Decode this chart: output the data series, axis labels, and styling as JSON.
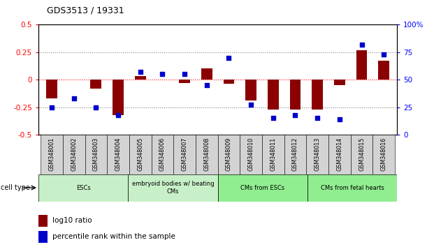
{
  "title": "GDS3513 / 19331",
  "samples": [
    "GSM348001",
    "GSM348002",
    "GSM348003",
    "GSM348004",
    "GSM348005",
    "GSM348006",
    "GSM348007",
    "GSM348008",
    "GSM348009",
    "GSM348010",
    "GSM348011",
    "GSM348012",
    "GSM348013",
    "GSM348014",
    "GSM348015",
    "GSM348016"
  ],
  "log10_ratio": [
    -0.17,
    0.0,
    -0.08,
    -0.32,
    0.03,
    0.0,
    -0.03,
    0.1,
    -0.04,
    -0.19,
    -0.27,
    -0.27,
    -0.27,
    -0.05,
    0.27,
    0.17
  ],
  "percentile_rank": [
    25,
    33,
    25,
    18,
    57,
    55,
    55,
    45,
    70,
    27,
    15,
    18,
    15,
    14,
    82,
    73
  ],
  "bar_color": "#8B0000",
  "scatter_color": "#0000CD",
  "ylim_left": [
    -0.5,
    0.5
  ],
  "ylim_right": [
    0,
    100
  ],
  "yticks_left": [
    -0.5,
    -0.25,
    0,
    0.25,
    0.5
  ],
  "yticks_right": [
    0,
    25,
    50,
    75,
    100
  ],
  "legend_red": "log10 ratio",
  "legend_blue": "percentile rank within the sample",
  "ct_groups": [
    {
      "label": "ESCs",
      "start": 0,
      "end": 4,
      "color": "#c8f0c8"
    },
    {
      "label": "embryoid bodies w/ beating\nCMs",
      "start": 4,
      "end": 8,
      "color": "#c8f0c8"
    },
    {
      "label": "CMs from ESCs",
      "start": 8,
      "end": 12,
      "color": "#90EE90"
    },
    {
      "label": "CMs from fetal hearts",
      "start": 12,
      "end": 16,
      "color": "#90EE90"
    }
  ]
}
